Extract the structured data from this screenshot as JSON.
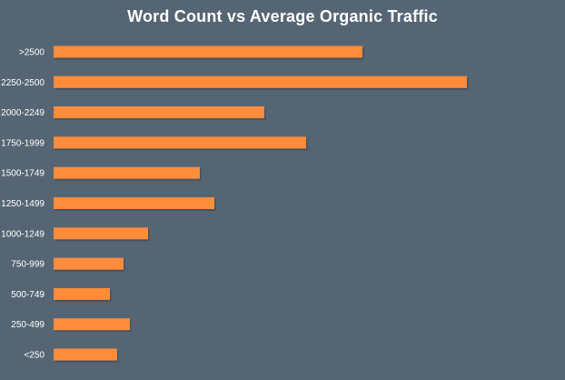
{
  "chart_data": {
    "type": "bar",
    "orientation": "horizontal",
    "title": "Word Count vs Average Organic Traffic",
    "xlabel": "",
    "ylabel": "",
    "categories": [
      ">2500",
      "2250-2500",
      "2000-2249",
      "1750-1999",
      "1500-1749",
      "1250-1499",
      "1000-1249",
      "750-999",
      "500-749",
      "250-499",
      "<250"
    ],
    "series": [
      {
        "values": [
          340,
          455,
          232,
          278,
          161,
          177,
          104,
          77,
          62,
          84,
          70
        ]
      }
    ],
    "xlim": [
      0,
      500
    ],
    "grid": false,
    "legend": "none",
    "colors": {
      "background": "#566573",
      "bar": "#ff8c3b",
      "text": "#ffffff"
    }
  }
}
